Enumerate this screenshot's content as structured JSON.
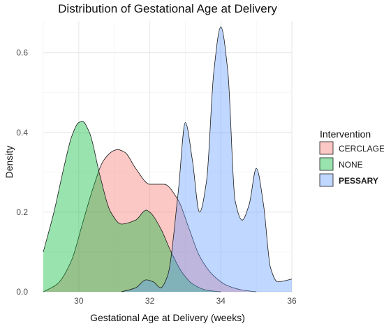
{
  "chart_data": {
    "type": "area",
    "title": "Distribution of Gestational Age at Delivery",
    "xlabel": "Gestational Age at Delivery (weeks)",
    "ylabel": "Density",
    "xlim": [
      29,
      36
    ],
    "ylim": [
      0,
      0.68
    ],
    "xticks": [
      30,
      32,
      34,
      36
    ],
    "xtick_labels": [
      "30",
      "32",
      "34",
      "36"
    ],
    "yticks": [
      0.0,
      0.2,
      0.4,
      0.6
    ],
    "ytick_labels": [
      "0.0",
      "0.2",
      "0.4",
      "0.6"
    ],
    "grid": true,
    "legend": {
      "title": "Intervention",
      "placement": "right"
    },
    "series": [
      {
        "name": "CERCLAGE",
        "color": "#F8766D",
        "x": [
          29.0,
          29.4,
          29.8,
          30.1,
          30.4,
          30.7,
          31.0,
          31.1,
          31.3,
          31.6,
          32.0,
          32.4,
          32.8,
          33.1,
          33.4,
          33.8,
          34.2,
          34.7,
          35.0
        ],
        "y": [
          0.0,
          0.02,
          0.08,
          0.17,
          0.26,
          0.33,
          0.355,
          0.357,
          0.35,
          0.31,
          0.27,
          0.27,
          0.23,
          0.16,
          0.09,
          0.04,
          0.015,
          0.003,
          0.0
        ]
      },
      {
        "name": "NONE",
        "color": "#00BA38",
        "x": [
          29.0,
          29.3,
          29.6,
          29.8,
          30.0,
          30.1,
          30.3,
          30.6,
          30.9,
          31.2,
          31.6,
          31.9,
          32.0,
          32.3,
          32.6,
          32.9,
          33.2,
          33.6,
          34.0
        ],
        "y": [
          0.1,
          0.2,
          0.32,
          0.39,
          0.425,
          0.428,
          0.4,
          0.29,
          0.2,
          0.17,
          0.18,
          0.205,
          0.2,
          0.16,
          0.1,
          0.05,
          0.02,
          0.004,
          0.0
        ]
      },
      {
        "name": "PESSARY",
        "color": "#619CFF",
        "x": [
          31.2,
          31.6,
          31.9,
          32.1,
          32.3,
          32.5,
          32.8,
          33.0,
          33.2,
          33.4,
          33.6,
          33.8,
          34.0,
          34.2,
          34.4,
          34.6,
          34.8,
          35.0,
          35.2,
          35.4,
          35.6,
          36.0
        ],
        "y": [
          0.0,
          0.01,
          0.03,
          0.025,
          0.01,
          0.04,
          0.25,
          0.425,
          0.33,
          0.2,
          0.28,
          0.55,
          0.665,
          0.55,
          0.23,
          0.18,
          0.22,
          0.31,
          0.22,
          0.06,
          0.025,
          0.032
        ]
      }
    ]
  }
}
